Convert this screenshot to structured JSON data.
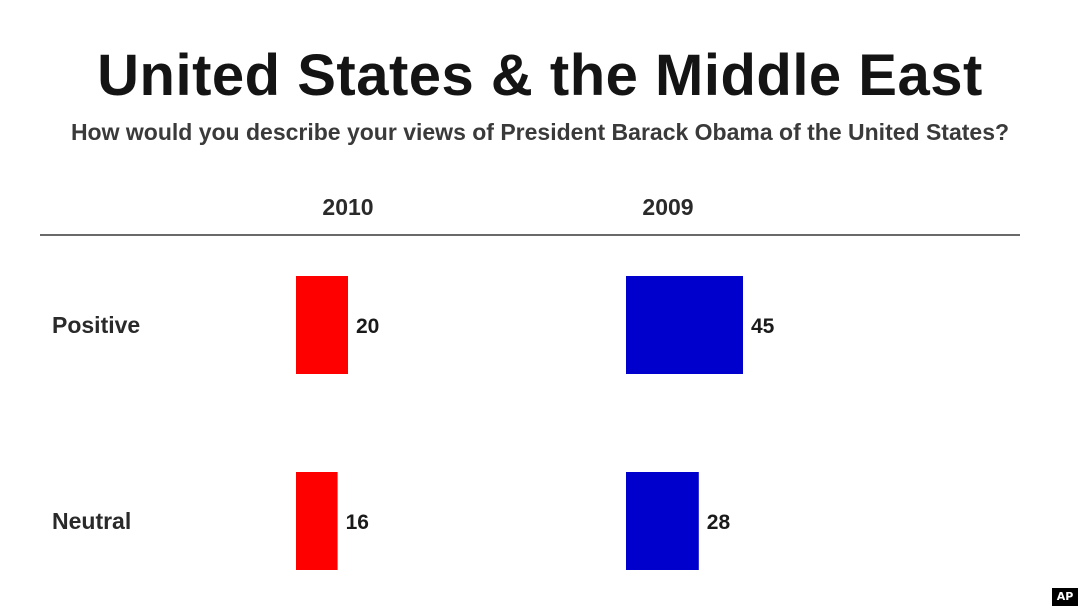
{
  "chart_data": {
    "type": "bar",
    "title": "United States & the Middle East",
    "subtitle": "How would you describe your views of President Barack Obama of the United States?",
    "categories": [
      "Positive",
      "Neutral"
    ],
    "series": [
      {
        "name": "2010",
        "color": "#ff0000",
        "values": [
          20,
          16
        ]
      },
      {
        "name": "2009",
        "color": "#0000cc",
        "values": [
          45,
          28
        ]
      }
    ],
    "orientation": "horizontal",
    "grid": false,
    "legend": "none"
  },
  "credit": "AP"
}
